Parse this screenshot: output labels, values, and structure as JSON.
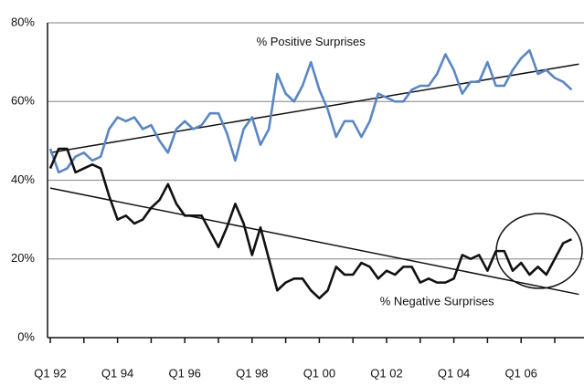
{
  "chart_data": {
    "type": "line",
    "categories": [
      "Q1 92",
      null,
      null,
      null,
      null,
      null,
      null,
      null,
      "Q1 94",
      null,
      null,
      null,
      null,
      null,
      null,
      null,
      "Q1 96",
      null,
      null,
      null,
      null,
      null,
      null,
      null,
      "Q1 98",
      null,
      null,
      null,
      null,
      null,
      null,
      null,
      "Q1 00",
      null,
      null,
      null,
      null,
      null,
      null,
      null,
      "Q1 02",
      null,
      null,
      null,
      null,
      null,
      null,
      null,
      "Q1 04",
      null,
      null,
      null,
      null,
      null,
      null,
      null,
      "Q1 06",
      null,
      null,
      null,
      null,
      null,
      null
    ],
    "series": [
      {
        "color": "#5a86c2",
        "trend": [
          47,
          69.5
        ],
        "values": [
          48,
          42,
          43,
          46,
          47,
          45,
          46,
          53,
          56,
          55,
          56,
          53,
          54,
          50,
          47,
          53,
          55,
          53,
          54,
          57,
          57,
          52,
          45,
          53,
          56,
          49,
          53,
          67,
          62,
          60,
          64,
          70,
          63,
          58,
          51,
          55,
          55,
          51,
          55,
          62,
          61,
          60,
          60,
          63,
          64,
          64,
          67,
          72,
          68,
          62,
          65,
          65,
          70,
          64,
          64,
          68,
          71,
          73,
          67,
          68,
          66,
          65,
          63
        ]
      },
      {
        "color": "#111111",
        "trend": [
          38,
          11
        ],
        "values": [
          43,
          48,
          48,
          42,
          43,
          44,
          43,
          36,
          30,
          31,
          29,
          30,
          33,
          35,
          39,
          34,
          31,
          31,
          31,
          27,
          23,
          28,
          34,
          29,
          21,
          28,
          20,
          12,
          14,
          15,
          15,
          12,
          10,
          12,
          18,
          16,
          16,
          19,
          18,
          15,
          17,
          16,
          18,
          18,
          14,
          15,
          14,
          14,
          15,
          21,
          20,
          21,
          17,
          22,
          22,
          17,
          19,
          16,
          18,
          16,
          20,
          24,
          25
        ]
      }
    ],
    "annotations": [
      {
        "text": "% Positive Surprises",
        "x": 31,
        "y": 75
      },
      {
        "text": "% Negative Surprises",
        "x": 46,
        "y": 9
      }
    ],
    "ylim": [
      0,
      80
    ],
    "yticks": [
      {
        "value": 0,
        "label": "0%"
      },
      {
        "value": 20,
        "label": "20%"
      },
      {
        "value": 40,
        "label": "40%"
      },
      {
        "value": 60,
        "label": "60%"
      },
      {
        "value": 80,
        "label": "80%"
      }
    ],
    "grid": true
  }
}
